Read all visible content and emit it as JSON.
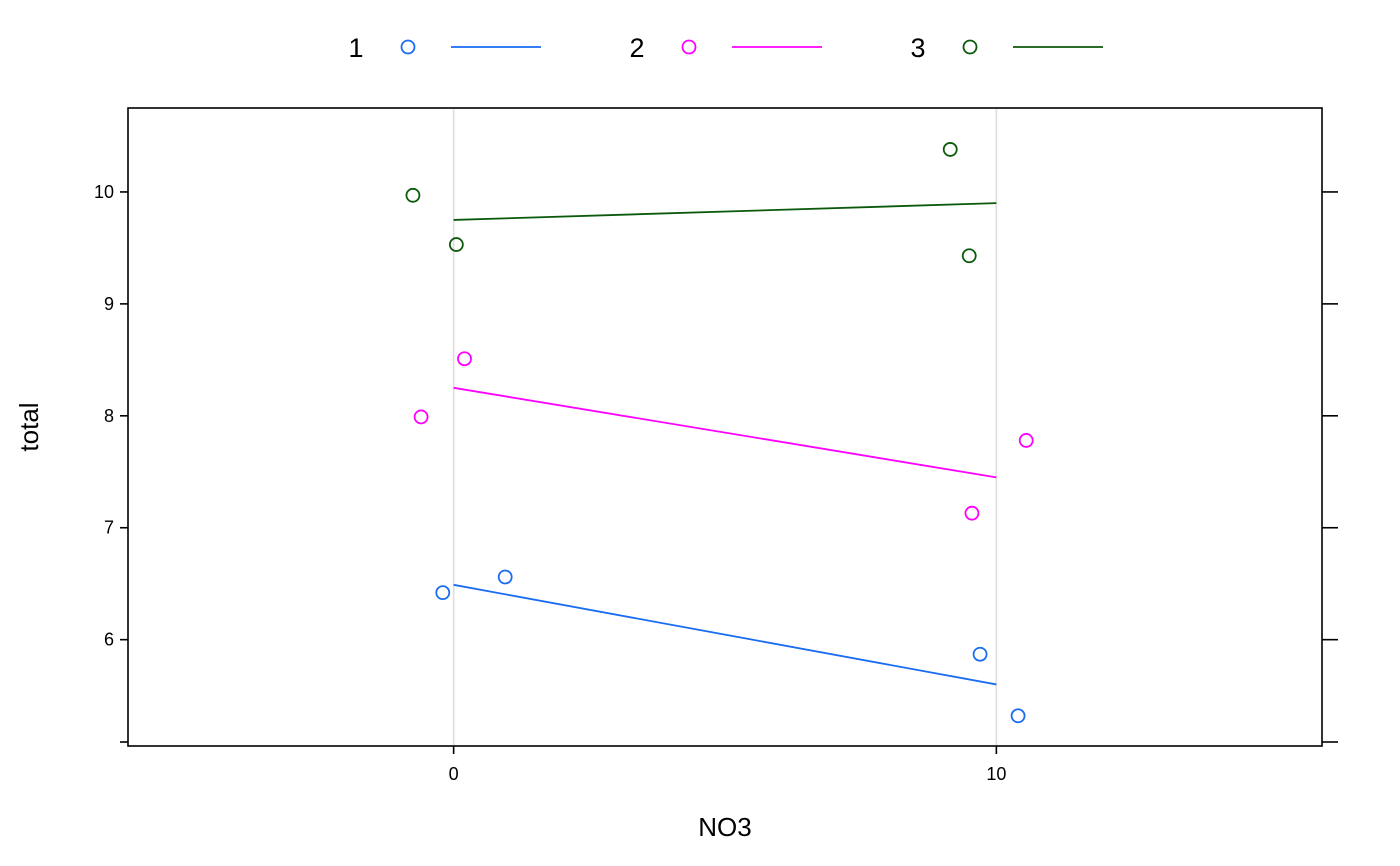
{
  "chart_data": {
    "type": "scatter",
    "xlabel": "NO3",
    "ylabel": "total",
    "xlim": [
      -6,
      16
    ],
    "ylim": [
      5.05,
      10.75
    ],
    "x_ticks": [
      0,
      10
    ],
    "y_ticks": [
      6,
      7,
      8,
      9,
      10
    ],
    "reference_lines_x": [
      0,
      10
    ],
    "legend_position": "top",
    "series": [
      {
        "name": "1",
        "color": "#1a6cf2",
        "points": [
          {
            "x": -0.2,
            "y": 6.42
          },
          {
            "x": 0.95,
            "y": 6.56
          },
          {
            "x": 9.7,
            "y": 5.87
          },
          {
            "x": 10.4,
            "y": 5.32
          }
        ],
        "fit_line": [
          {
            "x": 0,
            "y": 6.49
          },
          {
            "x": 10,
            "y": 5.6
          }
        ]
      },
      {
        "name": "2",
        "color": "#ff00ff",
        "points": [
          {
            "x": -0.6,
            "y": 7.99
          },
          {
            "x": 0.2,
            "y": 8.51
          },
          {
            "x": 9.55,
            "y": 7.13
          },
          {
            "x": 10.55,
            "y": 7.78
          }
        ],
        "fit_line": [
          {
            "x": 0,
            "y": 8.25
          },
          {
            "x": 10,
            "y": 7.45
          }
        ]
      },
      {
        "name": "3",
        "color": "#0b5a0b",
        "points": [
          {
            "x": -0.75,
            "y": 9.97
          },
          {
            "x": 0.05,
            "y": 9.53
          },
          {
            "x": 9.15,
            "y": 10.38
          },
          {
            "x": 9.5,
            "y": 9.43
          }
        ],
        "fit_line": [
          {
            "x": 0,
            "y": 9.75
          },
          {
            "x": 10,
            "y": 9.9
          }
        ]
      }
    ]
  }
}
